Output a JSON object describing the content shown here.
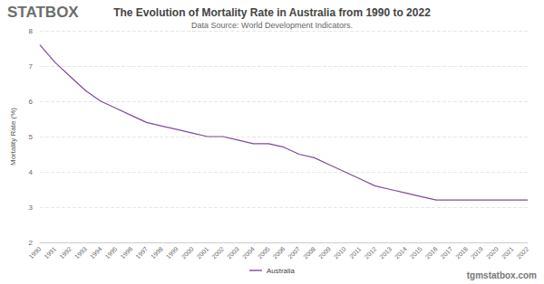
{
  "chart_data": {
    "type": "line",
    "title": "The Evolution of Mortality Rate in Australia from 1990 to 2022",
    "subtitle": "Data Source: World Development Indicators.",
    "y_label": "Mortality Rate (%)",
    "annotations": [
      "STATBOX",
      "tgmstatbox.com"
    ],
    "categories": [
      "1990",
      "1991",
      "1992",
      "1993",
      "1994",
      "1995",
      "1996",
      "1997",
      "1998",
      "1999",
      "2000",
      "2001",
      "2002",
      "2003",
      "2004",
      "2005",
      "2006",
      "2007",
      "2008",
      "2009",
      "2010",
      "2011",
      "2012",
      "2013",
      "2014",
      "2015",
      "2016",
      "2017",
      "2018",
      "2019",
      "2020",
      "2021",
      "2022"
    ],
    "series": [
      {
        "name": "Australia",
        "color": "#7e4a9e",
        "values": [
          7.6,
          7.1,
          6.7,
          6.3,
          6.0,
          5.8,
          5.6,
          5.4,
          5.3,
          5.2,
          5.1,
          5.0,
          5.0,
          4.9,
          4.8,
          4.8,
          4.7,
          4.5,
          4.4,
          4.2,
          4.0,
          3.8,
          3.6,
          3.5,
          3.4,
          3.3,
          3.2,
          3.2,
          3.2,
          3.2,
          3.2,
          3.2,
          3.2
        ]
      }
    ],
    "ylim": [
      2,
      8
    ],
    "yticks": [
      2,
      3,
      4,
      5,
      6,
      7,
      8
    ],
    "grid": true,
    "legend": "bottom"
  }
}
